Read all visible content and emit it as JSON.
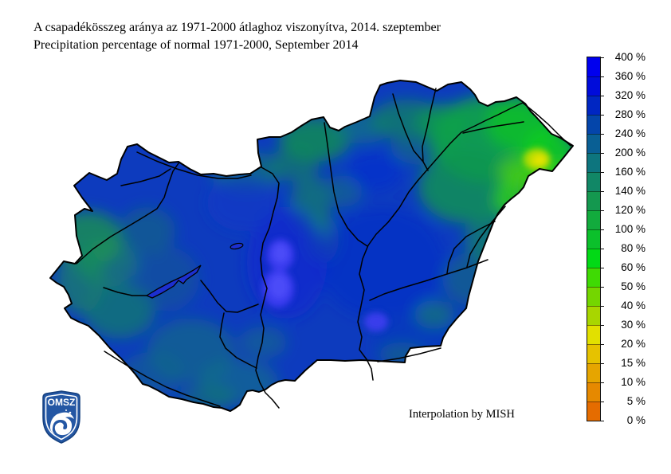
{
  "header": {
    "title_hu": "A csapadékösszeg aránya az 1971-2000 átlaghoz viszonyítva, 2014. szeptember",
    "title_en": "Precipitation percentage of normal 1971-2000, September 2014"
  },
  "map": {
    "attribution": "Interpolation by MISH",
    "logo_text": "OMSZ"
  },
  "legend": {
    "unit": "%",
    "tick_labels": [
      "400 %",
      "360 %",
      "320 %",
      "280 %",
      "240 %",
      "200 %",
      "160 %",
      "140 %",
      "120 %",
      "100 %",
      "80 %",
      "60 %",
      "50 %",
      "40 %",
      "30 %",
      "20 %",
      "15 %",
      "10 %",
      "5 %",
      "0 %"
    ],
    "band_colors": [
      "#0000EE",
      "#000CDA",
      "#0026C2",
      "#0445AA",
      "#095F94",
      "#0D757E",
      "#118766",
      "#14984F",
      "#12AB3D",
      "#0BC02B",
      "#02D916",
      "#3FDA04",
      "#74D600",
      "#A8D600",
      "#E2E000",
      "#E6C200",
      "#E6A500",
      "#E68900",
      "#E56C00"
    ]
  },
  "colors": {
    "map_base": "#0D3BBE",
    "logo_blue": "#2457A4",
    "border_line": "#000000"
  }
}
